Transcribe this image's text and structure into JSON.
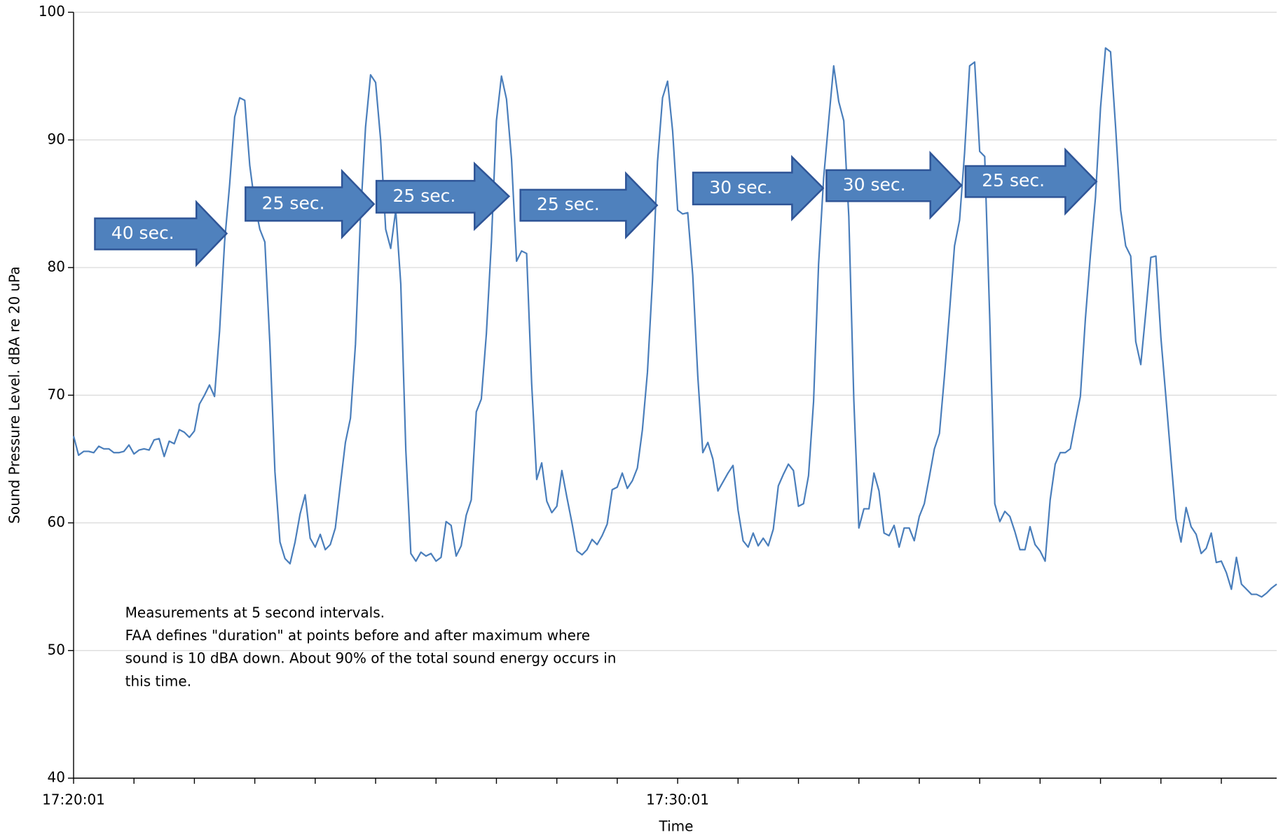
{
  "chart_data": {
    "type": "line",
    "xlabel": "Time",
    "ylabel": "Sound Pressure Level. dBA re 20 uPa",
    "categories": [
      "17:20:01",
      null,
      null,
      null,
      null,
      null,
      null,
      null,
      null,
      null,
      null,
      null,
      null,
      null,
      null,
      null,
      null,
      null,
      null,
      null,
      null,
      null,
      null,
      null,
      null,
      null,
      null,
      null,
      null,
      null,
      null,
      null,
      null,
      null,
      null,
      null,
      null,
      null,
      null,
      null,
      null,
      null,
      null,
      null,
      null,
      null,
      null,
      null,
      null,
      null,
      null,
      null,
      null,
      null,
      null,
      null,
      null,
      null,
      null,
      null,
      null,
      null,
      null,
      null,
      null,
      null,
      null,
      null,
      null,
      null,
      null,
      null,
      null,
      null,
      null,
      null,
      null,
      null,
      null,
      null,
      null,
      null,
      null,
      null,
      null,
      null,
      null,
      null,
      null,
      null,
      null,
      null,
      null,
      null,
      null,
      null,
      null,
      null,
      null,
      null,
      null,
      null,
      null,
      null,
      null,
      null,
      null,
      null,
      null,
      null,
      null,
      null,
      null,
      null,
      null,
      null,
      null,
      null,
      null,
      null,
      "17:30:01",
      null,
      null,
      null,
      null,
      null,
      null,
      null,
      null,
      null,
      null,
      null,
      null,
      null,
      null,
      null,
      null,
      null,
      null,
      null,
      null,
      null,
      null,
      null,
      null,
      null,
      null,
      null,
      null,
      null,
      null,
      null,
      null,
      null,
      null,
      null,
      null,
      null,
      null,
      null,
      null,
      null,
      null,
      null,
      null,
      null,
      null,
      null,
      null,
      null,
      null,
      null,
      null,
      null,
      null,
      null,
      null,
      null,
      null,
      null,
      null,
      null,
      null,
      null,
      null,
      null,
      null,
      null,
      null,
      null,
      null,
      null,
      null,
      null,
      null,
      null,
      null,
      null,
      null,
      null,
      null,
      null,
      null,
      null,
      null,
      null,
      null,
      null,
      null,
      null,
      null,
      null,
      null,
      null,
      null,
      null,
      null,
      null,
      null,
      null,
      null,
      null,
      null,
      null,
      null,
      null,
      null,
      null,
      null,
      null,
      null,
      null,
      null,
      null,
      null,
      null,
      null,
      null,
      null,
      null
    ],
    "values": [
      66.8,
      65.3,
      65.6,
      65.6,
      65.5,
      66.0,
      65.8,
      65.8,
      65.5,
      65.5,
      65.6,
      66.1,
      65.4,
      65.7,
      65.8,
      65.7,
      66.5,
      66.6,
      65.2,
      66.4,
      66.2,
      67.3,
      67.1,
      66.7,
      67.2,
      69.3,
      70.0,
      70.8,
      69.9,
      75.0,
      82.0,
      86.5,
      91.8,
      93.3,
      93.1,
      88.0,
      85.0,
      83.0,
      82.0,
      74.0,
      64.0,
      58.5,
      57.2,
      56.8,
      58.5,
      60.7,
      62.2,
      58.8,
      58.1,
      59.1,
      57.9,
      58.3,
      59.6,
      63.0,
      66.3,
      68.2,
      74.0,
      84.0,
      91.0,
      95.1,
      94.5,
      90.0,
      83.0,
      81.5,
      84.5,
      78.7,
      65.7,
      57.6,
      57.0,
      57.7,
      57.4,
      57.6,
      57.0,
      57.3,
      60.1,
      59.8,
      57.4,
      58.2,
      60.6,
      61.8,
      68.7,
      69.7,
      74.8,
      82.0,
      91.5,
      95.0,
      93.2,
      88.5,
      80.5,
      81.3,
      81.1,
      70.9,
      63.4,
      64.7,
      61.7,
      60.8,
      61.3,
      64.1,
      62.0,
      60.0,
      57.8,
      57.5,
      57.9,
      58.7,
      58.3,
      59.0,
      59.9,
      62.6,
      62.8,
      63.9,
      62.7,
      63.3,
      64.3,
      67.3,
      71.8,
      79.0,
      88.3,
      93.3,
      94.6,
      90.7,
      84.5,
      84.2,
      84.3,
      79.4,
      71.5,
      65.5,
      66.3,
      65.0,
      62.5,
      63.2,
      63.9,
      64.5,
      61.0,
      58.6,
      58.1,
      59.2,
      58.2,
      58.8,
      58.2,
      59.5,
      62.9,
      63.8,
      64.6,
      64.1,
      61.3,
      61.5,
      63.7,
      69.5,
      80.3,
      87.0,
      91.5,
      95.8,
      93.0,
      91.5,
      84.0,
      69.6,
      59.6,
      61.1,
      61.1,
      63.9,
      62.5,
      59.2,
      59.0,
      59.8,
      58.1,
      59.6,
      59.6,
      58.6,
      60.5,
      61.5,
      63.6,
      65.8,
      67.0,
      71.5,
      76.5,
      81.7,
      83.7,
      89.0,
      95.8,
      96.1,
      89.1,
      88.7,
      76.0,
      61.5,
      60.1,
      60.9,
      60.5,
      59.3,
      57.9,
      57.9,
      59.7,
      58.3,
      57.8,
      57.0,
      61.8,
      64.6,
      65.5,
      65.5,
      65.8,
      67.9,
      69.9,
      76.0,
      81.0,
      85.5,
      92.5,
      97.2,
      96.9,
      91.0,
      84.5,
      81.7,
      80.9,
      74.2,
      72.4,
      76.5,
      80.8,
      80.9,
      74.5,
      69.8,
      65.0,
      60.3,
      58.5,
      61.2,
      59.7,
      59.1,
      57.6,
      58.0,
      59.2,
      56.9,
      57.0,
      56.1,
      54.8,
      57.3,
      55.2,
      54.8,
      54.4,
      54.4,
      54.2,
      54.5,
      54.9,
      55.2
    ],
    "color": "#4a7ebb",
    "ylim": [
      40,
      100
    ],
    "yticks": [
      40,
      50,
      60,
      70,
      80,
      90,
      100
    ],
    "grid": true,
    "annotations": [
      "40 sec.",
      "25 sec.",
      "25 sec.",
      "25 sec.",
      "30 sec.",
      "30 sec.",
      "25 sec."
    ],
    "note": [
      "Measurements at 5 second intervals.",
      "FAA defines \"duration\" at points before and after maximum where",
      "sound is 10 dBA down.  About 90% of the total sound energy occurs in",
      "this time."
    ]
  }
}
